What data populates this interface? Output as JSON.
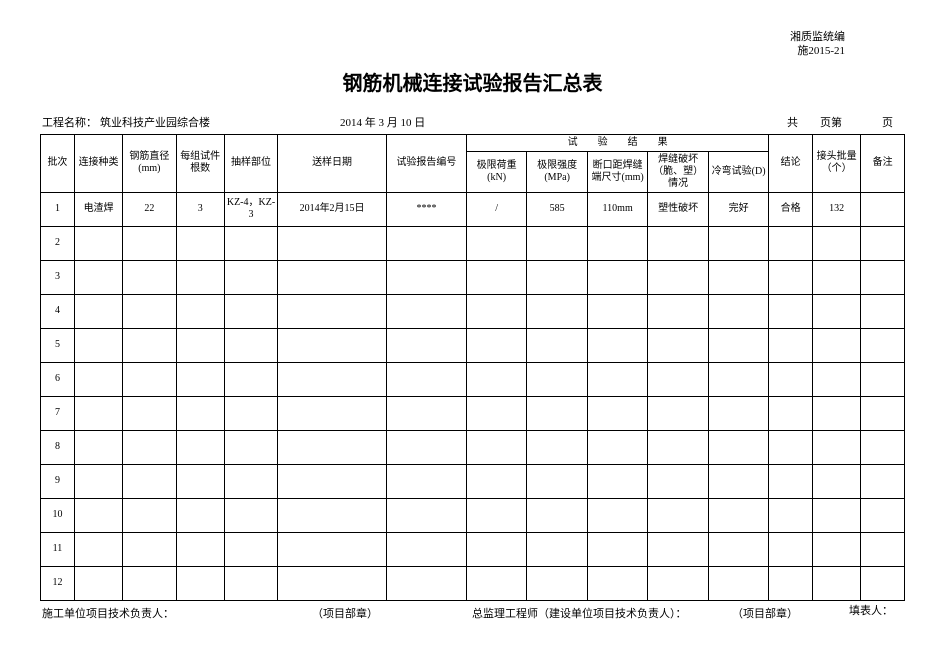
{
  "doc_code_line1": "湘质监统编",
  "doc_code_line2": "施2015-21",
  "title": "钢筋机械连接试验报告汇总表",
  "meta": {
    "project_label": "工程名称：",
    "project_value": "筑业科技产业园综合楼",
    "date": "2014 年 3 月 10 日",
    "page_total_prefix": "共",
    "page_total_suffix": "页第",
    "page_cur_suffix": "页"
  },
  "headers": {
    "batch": "批次",
    "conn_type": "连接种类",
    "rebar_dia": "钢筋直径(mm)",
    "sample_groups": "每组试件根数",
    "sampling_part": "抽样部位",
    "sample_date": "送样日期",
    "report_no": "试验报告编号",
    "test_results": "试　　验　　结　　果",
    "load": "极限荷重(kN)",
    "strength": "极限强度(MPa)",
    "gap": "断口距焊缝端尺寸(mm)",
    "weld_fracture": "焊缝破坏（脆、塑）情况",
    "cold_bend": "冷弯试验(D)",
    "conclusion": "结论",
    "joint_qty": "接头批量（个）",
    "remark": "备注"
  },
  "rows": [
    {
      "batch": "1",
      "conn_type": "电渣焊",
      "rebar_dia": "22",
      "sample_groups": "3",
      "sampling_part": "KZ-4，KZ-3",
      "sample_date": "2014年2月15日",
      "report_no": "****",
      "load": "/",
      "strength": "585",
      "gap": "110mm",
      "weld_fracture": "塑性破坏",
      "cold_bend": "完好",
      "conclusion": "合格",
      "joint_qty": "132",
      "remark": ""
    },
    {
      "batch": "2",
      "conn_type": "",
      "rebar_dia": "",
      "sample_groups": "",
      "sampling_part": "",
      "sample_date": "",
      "report_no": "",
      "load": "",
      "strength": "",
      "gap": "",
      "weld_fracture": "",
      "cold_bend": "",
      "conclusion": "",
      "joint_qty": "",
      "remark": ""
    },
    {
      "batch": "3",
      "conn_type": "",
      "rebar_dia": "",
      "sample_groups": "",
      "sampling_part": "",
      "sample_date": "",
      "report_no": "",
      "load": "",
      "strength": "",
      "gap": "",
      "weld_fracture": "",
      "cold_bend": "",
      "conclusion": "",
      "joint_qty": "",
      "remark": ""
    },
    {
      "batch": "4",
      "conn_type": "",
      "rebar_dia": "",
      "sample_groups": "",
      "sampling_part": "",
      "sample_date": "",
      "report_no": "",
      "load": "",
      "strength": "",
      "gap": "",
      "weld_fracture": "",
      "cold_bend": "",
      "conclusion": "",
      "joint_qty": "",
      "remark": ""
    },
    {
      "batch": "5",
      "conn_type": "",
      "rebar_dia": "",
      "sample_groups": "",
      "sampling_part": "",
      "sample_date": "",
      "report_no": "",
      "load": "",
      "strength": "",
      "gap": "",
      "weld_fracture": "",
      "cold_bend": "",
      "conclusion": "",
      "joint_qty": "",
      "remark": ""
    },
    {
      "batch": "6",
      "conn_type": "",
      "rebar_dia": "",
      "sample_groups": "",
      "sampling_part": "",
      "sample_date": "",
      "report_no": "",
      "load": "",
      "strength": "",
      "gap": "",
      "weld_fracture": "",
      "cold_bend": "",
      "conclusion": "",
      "joint_qty": "",
      "remark": ""
    },
    {
      "batch": "7",
      "conn_type": "",
      "rebar_dia": "",
      "sample_groups": "",
      "sampling_part": "",
      "sample_date": "",
      "report_no": "",
      "load": "",
      "strength": "",
      "gap": "",
      "weld_fracture": "",
      "cold_bend": "",
      "conclusion": "",
      "joint_qty": "",
      "remark": ""
    },
    {
      "batch": "8",
      "conn_type": "",
      "rebar_dia": "",
      "sample_groups": "",
      "sampling_part": "",
      "sample_date": "",
      "report_no": "",
      "load": "",
      "strength": "",
      "gap": "",
      "weld_fracture": "",
      "cold_bend": "",
      "conclusion": "",
      "joint_qty": "",
      "remark": ""
    },
    {
      "batch": "9",
      "conn_type": "",
      "rebar_dia": "",
      "sample_groups": "",
      "sampling_part": "",
      "sample_date": "",
      "report_no": "",
      "load": "",
      "strength": "",
      "gap": "",
      "weld_fracture": "",
      "cold_bend": "",
      "conclusion": "",
      "joint_qty": "",
      "remark": ""
    },
    {
      "batch": "10",
      "conn_type": "",
      "rebar_dia": "",
      "sample_groups": "",
      "sampling_part": "",
      "sample_date": "",
      "report_no": "",
      "load": "",
      "strength": "",
      "gap": "",
      "weld_fracture": "",
      "cold_bend": "",
      "conclusion": "",
      "joint_qty": "",
      "remark": ""
    },
    {
      "batch": "11",
      "conn_type": "",
      "rebar_dia": "",
      "sample_groups": "",
      "sampling_part": "",
      "sample_date": "",
      "report_no": "",
      "load": "",
      "strength": "",
      "gap": "",
      "weld_fracture": "",
      "cold_bend": "",
      "conclusion": "",
      "joint_qty": "",
      "remark": ""
    },
    {
      "batch": "12",
      "conn_type": "",
      "rebar_dia": "",
      "sample_groups": "",
      "sampling_part": "",
      "sample_date": "",
      "report_no": "",
      "load": "",
      "strength": "",
      "gap": "",
      "weld_fracture": "",
      "cold_bend": "",
      "conclusion": "",
      "joint_qty": "",
      "remark": ""
    }
  ],
  "footer": {
    "left": "施工单位项目技术负责人：",
    "stamp1": "（项目部章）",
    "mid": "总监理工程师（建设单位项目技术负责人）：",
    "stamp2": "（项目部章）",
    "filler_label": "填表人："
  }
}
